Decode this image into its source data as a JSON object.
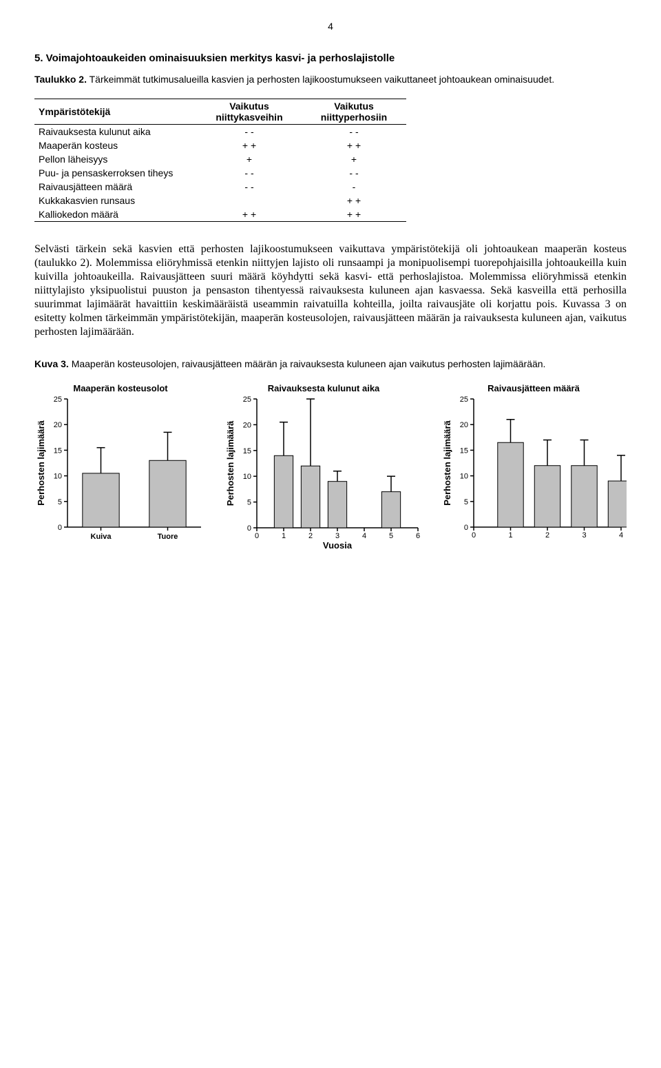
{
  "page_number": "4",
  "heading": "5. Voimajohtoaukeiden ominaisuuksien merkitys kasvi- ja perhoslajistolle",
  "table_caption_bold": "Taulukko 2.",
  "table_caption_rest": " Tärkeimmät tutkimusalueilla kasvien ja perhosten lajikoostumukseen vaikuttaneet johtoaukean ominaisuudet.",
  "table": {
    "headers": [
      "Ympäristötekijä",
      "Vaikutus niittykasveihin",
      "Vaikutus niittyperhosiin"
    ],
    "rows": [
      [
        "Raivauksesta kulunut aika",
        "- -",
        "- -"
      ],
      [
        "Maaperän kosteus",
        "+ +",
        "+ +"
      ],
      [
        "Pellon läheisyys",
        "+",
        "+"
      ],
      [
        "Puu- ja pensaskerroksen tiheys",
        "- -",
        "- -"
      ],
      [
        "Raivausjätteen määrä",
        "- -",
        "-"
      ],
      [
        "Kukkakasvien runsaus",
        "",
        "+ +"
      ],
      [
        "Kalliokedon määrä",
        "+ +",
        "+ +"
      ]
    ]
  },
  "paragraph": "Selvästi tärkein sekä kasvien että perhosten lajikoostumukseen vaikuttava ympäristötekijä oli johtoaukean maaperän kosteus (taulukko 2). Molemmissa eliöryhmissä etenkin niittyjen lajisto oli runsaampi ja monipuolisempi tuorepohjaisilla johtoaukeilla kuin kuivilla johtoaukeilla. Raivausjätteen suuri määrä köyhdytti sekä kasvi- että perhoslajistoa. Molemmissa eliöryhmissä etenkin niittylajisto yksipuolistui puuston ja pensaston tihentyessä raivauksesta kuluneen ajan kasvaessa. Sekä kasveilla että perhosilla suurimmat lajimäärät havaittiin keskimääräistä useammin raivatuilla kohteilla, joilta raivausjäte oli korjattu pois. Kuvassa 3 on esitetty kolmen tärkeimmän ympäristötekijän, maaperän kosteusolojen, raivausjätteen määrän ja raivauksesta kuluneen ajan, vaikutus perhosten lajimäärään.",
  "fig_caption_bold": "Kuva 3.",
  "fig_caption_rest": " Maaperän kosteusolojen, raivausjätteen määrän ja raivauksesta kuluneen ajan vaikutus perhosten lajimäärään.",
  "charts": {
    "y_label": "Perhosten lajimäärä",
    "y_ticks": [
      0,
      5,
      10,
      15,
      20,
      25
    ],
    "ymax": 25,
    "bar_color": "#c0c0c0",
    "chart1": {
      "title": "Maaperän kosteusolot",
      "categories": [
        "Kuiva",
        "Tuore"
      ],
      "values": [
        10.5,
        13
      ],
      "errors": [
        5,
        5.5
      ]
    },
    "chart2": {
      "title": "Raivauksesta kulunut aika",
      "x_label": "Vuosia",
      "x_ticks": [
        0,
        1,
        2,
        3,
        4,
        5,
        6
      ],
      "bar_positions": [
        1,
        2,
        3,
        5
      ],
      "values": [
        14,
        12,
        9,
        7
      ],
      "errors": [
        6.5,
        13,
        2,
        3
      ]
    },
    "chart3": {
      "title": "Raivausjätteen määrä",
      "x_ticks": [
        0,
        1,
        2,
        3,
        4
      ],
      "bar_positions": [
        1,
        2,
        3,
        4
      ],
      "values": [
        16.5,
        12,
        12,
        9
      ],
      "errors": [
        4.5,
        5,
        5,
        5
      ]
    }
  }
}
